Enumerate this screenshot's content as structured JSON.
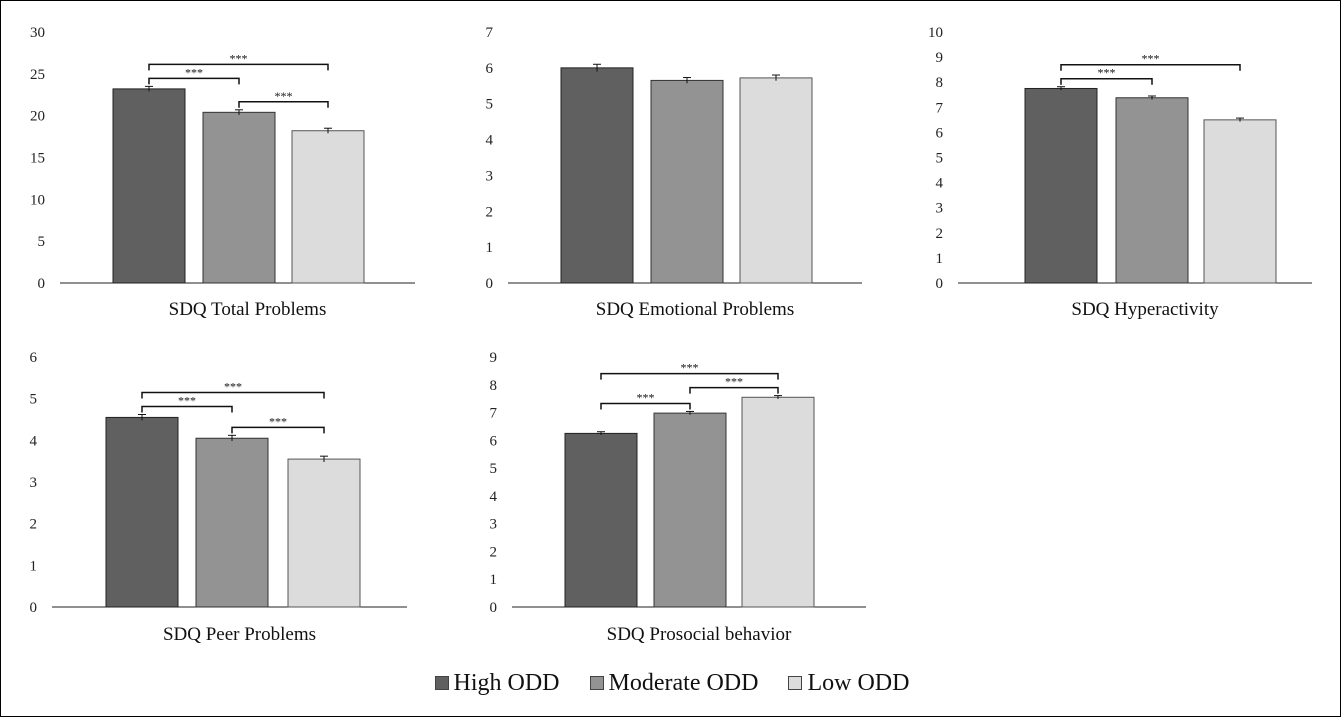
{
  "chart_data": [
    {
      "type": "bar",
      "xlabel": "SDQ Total Problems",
      "categories": [
        "High ODD",
        "Moderate ODD",
        "Low ODD"
      ],
      "values": [
        23.2,
        20.4,
        18.2
      ],
      "errors": [
        0.3,
        0.3,
        0.3
      ],
      "ylim": [
        0,
        30
      ],
      "yticks": [
        0,
        5,
        10,
        15,
        20,
        25,
        30
      ],
      "significance": [
        {
          "from": 0,
          "to": 1,
          "label": "***"
        },
        {
          "from": 0,
          "to": 2,
          "label": "***"
        },
        {
          "from": 1,
          "to": 2,
          "label": "***"
        }
      ]
    },
    {
      "type": "bar",
      "xlabel": "SDQ Emotional Problems",
      "categories": [
        "High ODD",
        "Moderate ODD",
        "Low ODD"
      ],
      "values": [
        6.0,
        5.65,
        5.72
      ],
      "errors": [
        0.1,
        0.08,
        0.08
      ],
      "ylim": [
        0,
        7
      ],
      "yticks": [
        0,
        1,
        2,
        3,
        4,
        5,
        6,
        7
      ],
      "significance": []
    },
    {
      "type": "bar",
      "xlabel": "SDQ Hyperactivity",
      "categories": [
        "High ODD",
        "Moderate ODD",
        "Low ODD"
      ],
      "values": [
        7.75,
        7.38,
        6.5
      ],
      "errors": [
        0.07,
        0.07,
        0.07
      ],
      "ylim": [
        0,
        10
      ],
      "yticks": [
        0,
        1,
        2,
        3,
        4,
        5,
        6,
        7,
        8,
        9,
        10
      ],
      "significance": [
        {
          "from": 0,
          "to": 1,
          "label": "***"
        },
        {
          "from": 0,
          "to": 2,
          "label": "***"
        }
      ]
    },
    {
      "type": "bar",
      "xlabel": "SDQ Peer Problems",
      "categories": [
        "High ODD",
        "Moderate ODD",
        "Low ODD"
      ],
      "values": [
        4.55,
        4.05,
        3.55
      ],
      "errors": [
        0.07,
        0.07,
        0.07
      ],
      "ylim": [
        0,
        6
      ],
      "yticks": [
        0,
        1,
        2,
        3,
        4,
        5,
        6
      ],
      "significance": [
        {
          "from": 0,
          "to": 1,
          "label": "***"
        },
        {
          "from": 0,
          "to": 2,
          "label": "***"
        },
        {
          "from": 1,
          "to": 2,
          "label": "***"
        }
      ]
    },
    {
      "type": "bar",
      "xlabel": "SDQ Prosocial behavior",
      "categories": [
        "High ODD",
        "Moderate ODD",
        "Low ODD"
      ],
      "values": [
        6.25,
        6.98,
        7.55
      ],
      "errors": [
        0.06,
        0.06,
        0.06
      ],
      "ylim": [
        0,
        9
      ],
      "yticks": [
        0,
        1,
        2,
        3,
        4,
        5,
        6,
        7,
        8,
        9
      ],
      "significance": [
        {
          "from": 0,
          "to": 1,
          "label": "***"
        },
        {
          "from": 0,
          "to": 2,
          "label": "***"
        },
        {
          "from": 1,
          "to": 2,
          "label": "***"
        }
      ]
    }
  ],
  "legend": [
    {
      "label": "High ODD",
      "color": "#606060"
    },
    {
      "label": "Moderate ODD",
      "color": "#939393"
    },
    {
      "label": "Low ODD",
      "color": "#dcdcdc"
    }
  ]
}
